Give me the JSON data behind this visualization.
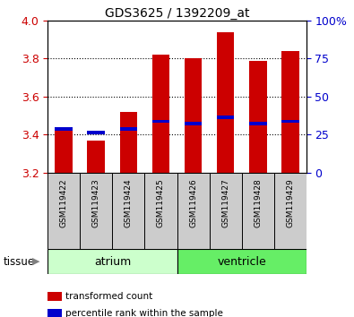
{
  "title": "GDS3625 / 1392209_at",
  "samples": [
    "GSM119422",
    "GSM119423",
    "GSM119424",
    "GSM119425",
    "GSM119426",
    "GSM119427",
    "GSM119428",
    "GSM119429"
  ],
  "red_top": [
    3.42,
    3.37,
    3.52,
    3.82,
    3.8,
    3.94,
    3.79,
    3.84
  ],
  "blue_pos": [
    3.43,
    3.41,
    3.43,
    3.47,
    3.46,
    3.49,
    3.46,
    3.47
  ],
  "baseline": 3.2,
  "ylim": [
    3.2,
    4.0
  ],
  "right_ylim": [
    0,
    100
  ],
  "right_yticks": [
    0,
    25,
    50,
    75,
    100
  ],
  "right_yticklabels": [
    "0",
    "25",
    "50",
    "75",
    "100%"
  ],
  "left_yticks": [
    3.2,
    3.4,
    3.6,
    3.8,
    4.0
  ],
  "tissue_groups": [
    {
      "label": "atrium",
      "start": 0,
      "end": 3,
      "color": "#ccffcc"
    },
    {
      "label": "ventricle",
      "start": 4,
      "end": 7,
      "color": "#66ee66"
    }
  ],
  "bar_color": "#cc0000",
  "blue_color": "#0000cc",
  "tick_label_color_left": "#cc0000",
  "tick_label_color_right": "#0000cc",
  "legend_items": [
    {
      "color": "#cc0000",
      "label": "transformed count"
    },
    {
      "color": "#0000cc",
      "label": "percentile rank within the sample"
    }
  ],
  "tissue_label": "tissue",
  "tick_bg": "#cccccc",
  "bar_width": 0.55
}
